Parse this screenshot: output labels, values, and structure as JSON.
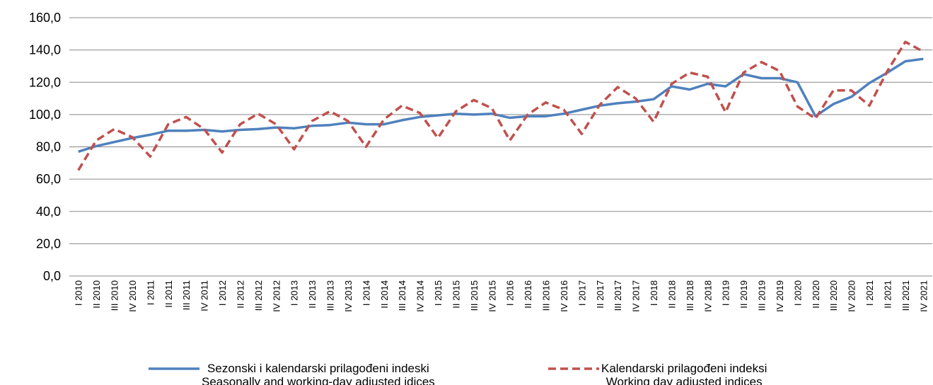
{
  "chart_data": {
    "type": "line",
    "categories": [
      "I 2010",
      "II 2010",
      "III 2010",
      "IV 2010",
      "I 2011",
      "II 2011",
      "III 2011",
      "IV 2011",
      "I 2012",
      "II 2012",
      "III 2012",
      "IV 2012",
      "I 2013",
      "II 2013",
      "III 2013",
      "IV 2013",
      "I 2014",
      "II 2014",
      "III 2014",
      "IV 2014",
      "I 2015",
      "II 2015",
      "III 2015",
      "IV 2015",
      "I 2016",
      "II 2016",
      "III 2016",
      "IV 2016",
      "I 2017",
      "II 2017",
      "III 2017",
      "IV 2017",
      "I 2018",
      "II 2018",
      "III 2018",
      "IV 2018",
      "I 2019",
      "II 2019",
      "III 2019",
      "IV 2019",
      "I 2020",
      "II 2020",
      "III 2020",
      "IV 2020",
      "I 2021",
      "II 2021",
      "III 2021",
      "IV 2021"
    ],
    "series": [
      {
        "name": "Sezonski i kalendarski prilagođeni indeski\nSeasonally and working-day adjusted idices",
        "color": "#4f81bd",
        "dash": false,
        "values": [
          77,
          80.5,
          83,
          85.5,
          87.5,
          90,
          90,
          90.5,
          89.5,
          90.5,
          91,
          92,
          91.5,
          93,
          93.5,
          95,
          94,
          94,
          96.5,
          98.5,
          99.5,
          100.5,
          100,
          100.5,
          98,
          99,
          99,
          100.5,
          103,
          105.5,
          107,
          108,
          109.5,
          117.5,
          115.5,
          119,
          117.5,
          125,
          122.5,
          122.5,
          120,
          99,
          106.5,
          111,
          119.5,
          126,
          133,
          134.5
        ]
      },
      {
        "name": "Kalendarski prilagođeni indeksi\nWorking day adjusted indices",
        "color": "#c0504d",
        "dash": true,
        "values": [
          65.5,
          84,
          91,
          86,
          74,
          94,
          98.5,
          91,
          76.5,
          94,
          100.5,
          94,
          78.5,
          96,
          102,
          96,
          80,
          97,
          105.5,
          101,
          85.5,
          102,
          109,
          104,
          84,
          100,
          107.5,
          103,
          88,
          106,
          117,
          110,
          95.5,
          119,
          126,
          123.5,
          101.5,
          126,
          132.5,
          127,
          105,
          97.5,
          115,
          115,
          105.5,
          127,
          145,
          139
        ]
      }
    ],
    "ylim": [
      0,
      160
    ],
    "yticks": [
      {
        "value": 0,
        "label": "0,0"
      },
      {
        "value": 20,
        "label": "20,0"
      },
      {
        "value": 40,
        "label": "40,0"
      },
      {
        "value": 60,
        "label": "60,0"
      },
      {
        "value": 80,
        "label": "80,0"
      },
      {
        "value": 100,
        "label": "100,0"
      },
      {
        "value": 120,
        "label": "120,0"
      },
      {
        "value": 140,
        "label": "140,0"
      },
      {
        "value": 160,
        "label": "160,0"
      }
    ],
    "grid": true
  }
}
